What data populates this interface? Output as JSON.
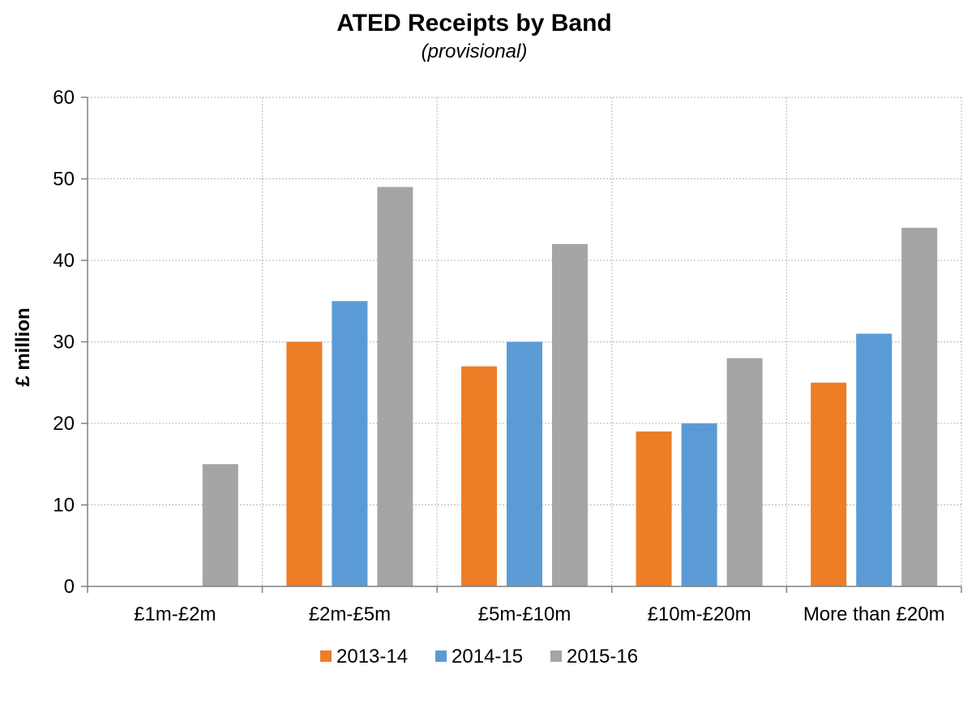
{
  "chart_data": {
    "type": "bar",
    "title": "ATED Receipts by Band",
    "subtitle": "(provisional)",
    "ylabel": "£ million",
    "xlabel": "",
    "ylim": [
      0,
      60
    ],
    "yticks": [
      0,
      10,
      20,
      30,
      40,
      50,
      60
    ],
    "categories": [
      "£1m-£2m",
      "£2m-£5m",
      "£5m-£10m",
      "£10m-£20m",
      "More than £20m"
    ],
    "series": [
      {
        "name": "2013-14",
        "color": "#ED7D27",
        "values": [
          null,
          30,
          27,
          19,
          25
        ]
      },
      {
        "name": "2014-15",
        "color": "#5B9BD5",
        "values": [
          null,
          35,
          30,
          20,
          31
        ]
      },
      {
        "name": "2015-16",
        "color": "#A5A5A5",
        "values": [
          15,
          49,
          42,
          28,
          44
        ]
      }
    ],
    "grid": true,
    "legend_position": "bottom"
  }
}
